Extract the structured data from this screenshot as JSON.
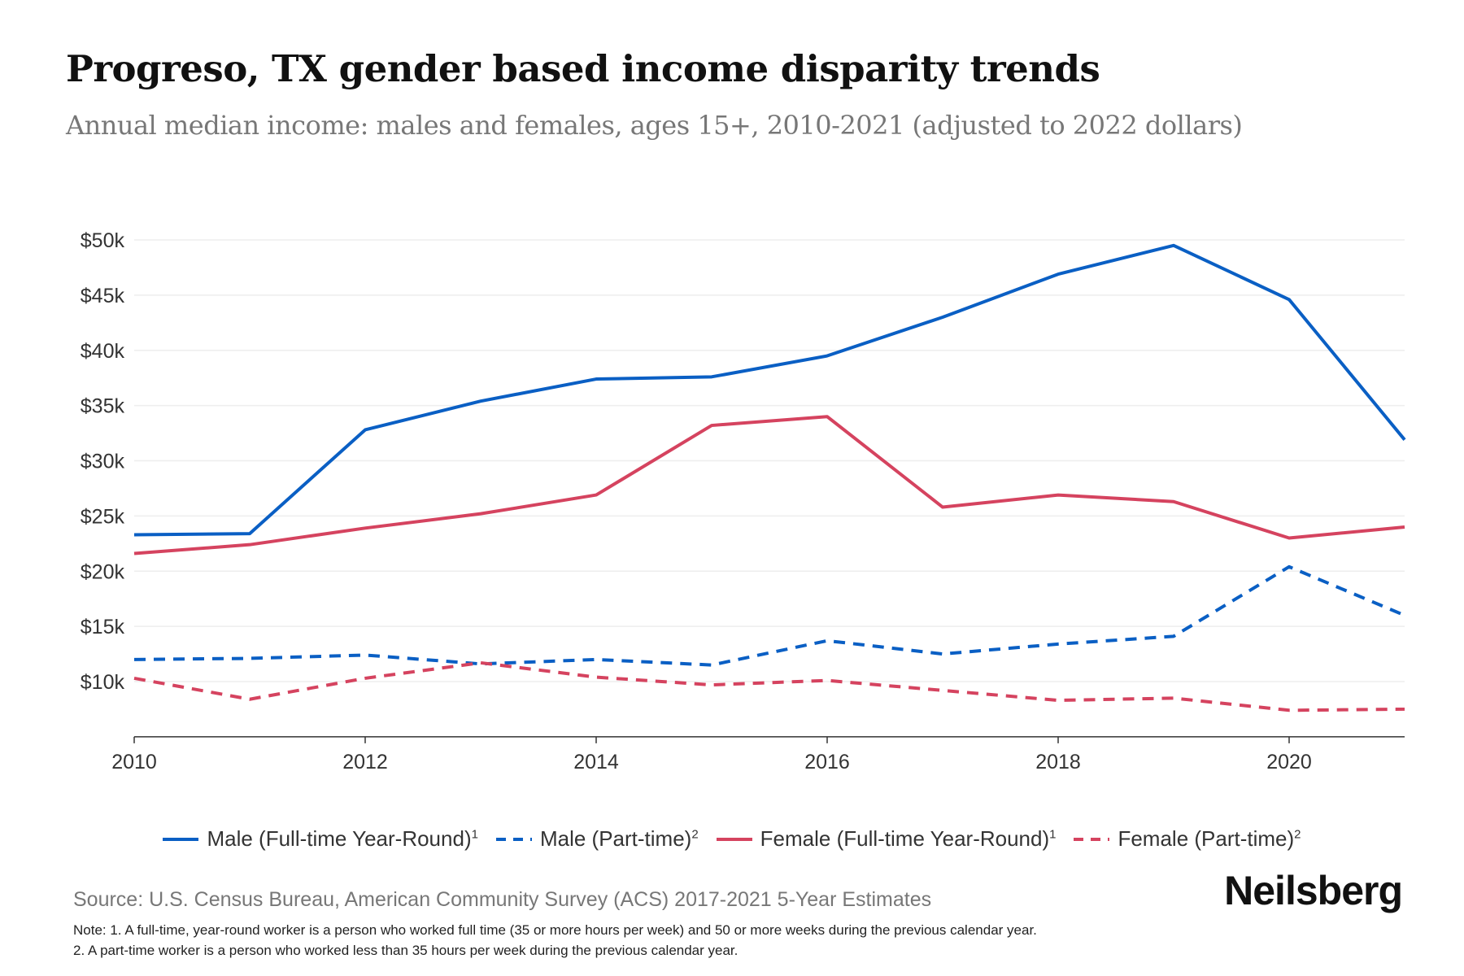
{
  "title": "Progreso, TX gender based income disparity trends",
  "subtitle": "Annual median income: males and females, ages 15+, 2010-2021 (adjusted to 2022 dollars)",
  "chart_data": {
    "type": "line",
    "x": [
      2010,
      2011,
      2012,
      2013,
      2014,
      2015,
      2016,
      2017,
      2018,
      2019,
      2020,
      2021
    ],
    "xticks": [
      2010,
      2012,
      2014,
      2016,
      2018,
      2020
    ],
    "xtick_labels": [
      "2010",
      "2012",
      "2014",
      "2016",
      "2018",
      "2020"
    ],
    "yticks": [
      10000,
      15000,
      20000,
      25000,
      30000,
      35000,
      40000,
      45000,
      50000
    ],
    "ytick_labels": [
      "$10k",
      "$15k",
      "$20k",
      "$25k",
      "$30k",
      "$35k",
      "$40k",
      "$45k",
      "$50k"
    ],
    "xlim": [
      2010,
      2021
    ],
    "ylim": [
      5000,
      50500
    ],
    "grid": "horizontal",
    "legend_placement": "bottom",
    "series": [
      {
        "name": "Male (Full-time Year-Round)",
        "sup": "1",
        "color": "#0a5fc4",
        "dash": "solid",
        "values": [
          23300,
          23400,
          32800,
          35400,
          37400,
          37600,
          39500,
          43000,
          46900,
          49500,
          44600,
          31900
        ]
      },
      {
        "name": "Male (Part-time)",
        "sup": "2",
        "color": "#0a5fc4",
        "dash": "dashed",
        "values": [
          12000,
          12100,
          12400,
          11600,
          12000,
          11500,
          13700,
          12500,
          13400,
          14100,
          20400,
          16000
        ]
      },
      {
        "name": "Female (Full-time Year-Round)",
        "sup": "1",
        "color": "#d5435f",
        "dash": "solid",
        "values": [
          21600,
          22400,
          23900,
          25200,
          26900,
          33200,
          34000,
          25800,
          26900,
          26300,
          23000,
          24000
        ]
      },
      {
        "name": "Female (Part-time)",
        "sup": "2",
        "color": "#d5435f",
        "dash": "dashed",
        "values": [
          10300,
          8400,
          10300,
          11700,
          10400,
          9700,
          10100,
          9200,
          8300,
          8500,
          7400,
          7500
        ]
      }
    ]
  },
  "source": "Source: U.S. Census Bureau, American Community Survey (ACS) 2017-2021 5-Year Estimates",
  "notes": [
    "Note: 1. A full-time, year-round worker is a person who worked full time (35 or more hours per week) and 50 or more weeks during the previous calendar year.",
    "2. A part-time worker is a person who worked less than 35 hours per week during the previous calendar year."
  ],
  "logo": "Neilsberg"
}
